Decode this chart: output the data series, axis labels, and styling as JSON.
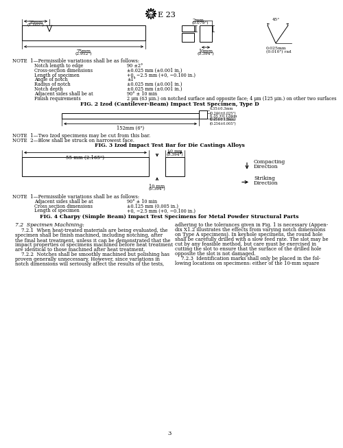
{
  "bg_color": "#ffffff",
  "fig2_caption": "FIG. 2 Izod (Cantilever-Beam) Impact Test Specimen, Type D",
  "fig3_caption": "FIG. 3 Izod Impact Test Bar for Die Castings Alloys",
  "fig4_caption": "FIG. 4 Charpy (Simple Beam) Impact Test Specimens for Metal Powder Structural Parts",
  "fig2_notes_header": "NOTE  1—Permissible variations shall be as follows:",
  "fig2_notes": [
    [
      "Notch length to edge",
      "90 ±2°"
    ],
    [
      "Cross-section dimensions",
      "±0.025 mm (±0.001 in.)"
    ],
    [
      "Length of specimen",
      "+0, −2.5 mm (+0, −0.100 in.)"
    ],
    [
      "Angle of notch",
      "±1°"
    ],
    [
      "Radius of notch",
      "±0.025 mm (±0.001 in.)"
    ],
    [
      "Notch depth",
      "±0.025 mm (±0.001 in.)"
    ],
    [
      "Adjacent sides shall be at",
      "90° ± 10 min"
    ],
    [
      "Finish requirements",
      "2 μm (63 μin.) on notched surface and opposite face; 4 μm (125 μin.) on other two surfaces"
    ]
  ],
  "fig3_note1": "NOTE  1—Two Izod specimens may be cut from this bar.",
  "fig3_note2": "NOTE  2—Blow shall be struck on narrowest face.",
  "fig4_notes_header": "NOTE  1—Permissible variations shall be as follows:",
  "fig4_notes": [
    [
      "Adjacent sides shall be at",
      "90° ± 10 min"
    ],
    [
      "Cross section dimensions",
      "±0.125 mm (0.005 in.)"
    ],
    [
      "Length of specimen",
      "+0, −2.5 mm (+0, −0.100 in.)"
    ]
  ],
  "lines_col1": [
    "    7.2.1  When heat-treated materials are being evaluated, the",
    "specimen shall be finish machined, including notching, after",
    "the final heat treatment, unless it can be demonstrated that the",
    "impact properties of specimens machined before heat treatment",
    "are identical to those machined after heat treatment.",
    "    7.2.2  Notches shall be smoothly machined but polishing has",
    "proven generally unnecessary. However, since variations in",
    "notch dimensions will seriously affect the results of the tests,"
  ],
  "lines_col2": [
    "adhering to the tolerances given in Fig. 1 is necessary (Appen-",
    "dix X1.2 illustrates the effects from varying notch dimensions",
    "on Type A specimens). In keyhole specimens, the round hole",
    "shall be carefully drilled with a slow feed rate. The slot may be",
    "cut by any feasible method, but care must be exercised in",
    "cutting the slot to ensure that the surface of the drilled hole",
    "opposite the slot is not damaged.",
    "    7.2.3  Identification marks shall only be placed in the fol-",
    "lowing locations on specimens: either of the 10-mm square"
  ]
}
